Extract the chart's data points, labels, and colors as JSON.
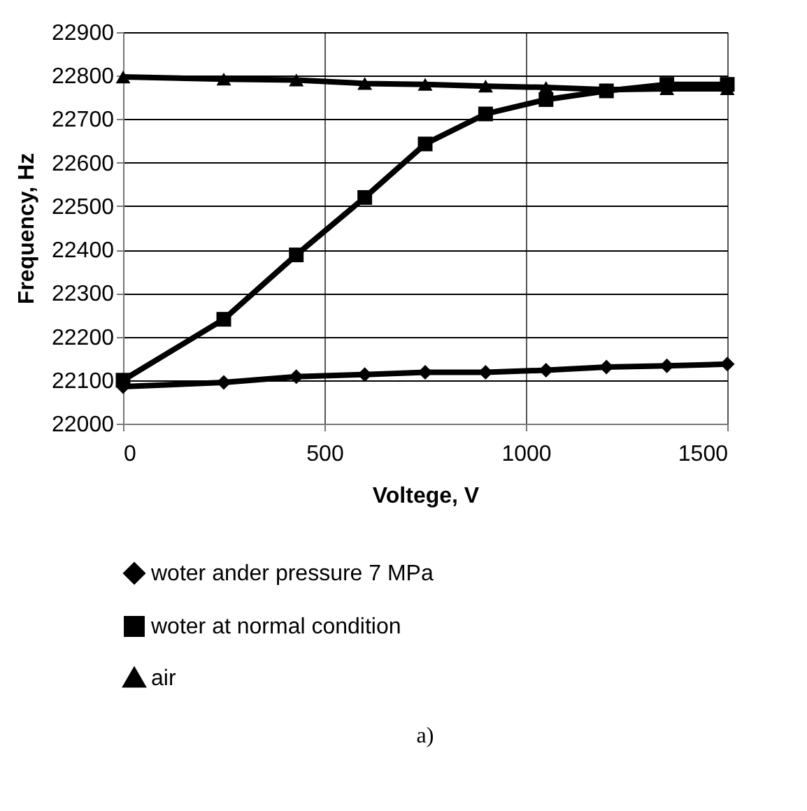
{
  "chart_data": {
    "type": "line",
    "xlabel": "Voltege, V",
    "ylabel": "Frequency, Hz",
    "x": [
      0,
      250,
      430,
      600,
      750,
      900,
      1050,
      1200,
      1350,
      1500
    ],
    "series": [
      {
        "name": "woter ander pressure 7 MPa",
        "color": "#000000",
        "marker": "diamond",
        "values": [
          22085,
          22095,
          22108,
          22113,
          22118,
          22118,
          22123,
          22130,
          22133,
          22137
        ]
      },
      {
        "name": "woter at normal condition",
        "color": "#000000",
        "marker": "square",
        "values": [
          22100,
          22240,
          22388,
          22520,
          22643,
          22712,
          22745,
          22765,
          22780,
          22780
        ]
      },
      {
        "name": "air",
        "color": "#000000",
        "marker": "triangle",
        "values": [
          22797,
          22792,
          22790,
          22782,
          22780,
          22776,
          22773,
          22768,
          22770,
          22770
        ]
      }
    ],
    "xlim": [
      0,
      1500
    ],
    "xticks": [
      0,
      500,
      1000,
      1500
    ],
    "ylim": [
      22000,
      22900
    ],
    "yticks": [
      22000,
      22100,
      22200,
      22300,
      22400,
      22500,
      22600,
      22700,
      22800,
      22900
    ],
    "grid": true,
    "legend": "bottom",
    "line_style": "solid",
    "annotations": [
      "a)"
    ]
  }
}
